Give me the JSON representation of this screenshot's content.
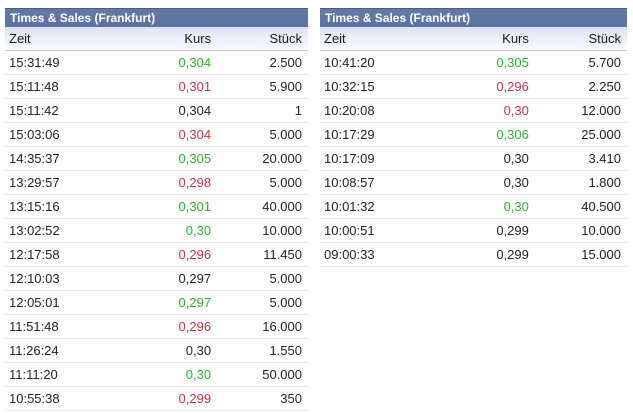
{
  "colors": {
    "title_bg": "#5b73a5",
    "title_text": "#ffffff",
    "positive": "#2fb12f",
    "negative": "#c4374b",
    "neutral": "#222222"
  },
  "tables": [
    {
      "title": "Times & Sales (Frankfurt)",
      "columns": [
        "Zeit",
        "Kurs",
        "Stück"
      ],
      "rows": [
        {
          "zeit": "15:31:49",
          "kurs": "0,304",
          "trend": "up",
          "stueck": "2.500"
        },
        {
          "zeit": "15:11:48",
          "kurs": "0,301",
          "trend": "down",
          "stueck": "5.900"
        },
        {
          "zeit": "15:11:42",
          "kurs": "0,304",
          "trend": "neutral",
          "stueck": "1"
        },
        {
          "zeit": "15:03:06",
          "kurs": "0,304",
          "trend": "down",
          "stueck": "5.000"
        },
        {
          "zeit": "14:35:37",
          "kurs": "0,305",
          "trend": "up",
          "stueck": "20.000"
        },
        {
          "zeit": "13:29:57",
          "kurs": "0,298",
          "trend": "down",
          "stueck": "5.000"
        },
        {
          "zeit": "13:15:16",
          "kurs": "0,301",
          "trend": "up",
          "stueck": "40.000"
        },
        {
          "zeit": "13:02:52",
          "kurs": "0,30",
          "trend": "up",
          "stueck": "10.000"
        },
        {
          "zeit": "12:17:58",
          "kurs": "0,296",
          "trend": "down",
          "stueck": "11.450"
        },
        {
          "zeit": "12:10:03",
          "kurs": "0,297",
          "trend": "neutral",
          "stueck": "5.000"
        },
        {
          "zeit": "12:05:01",
          "kurs": "0,297",
          "trend": "up",
          "stueck": "5.000"
        },
        {
          "zeit": "11:51:48",
          "kurs": "0,296",
          "trend": "down",
          "stueck": "16.000"
        },
        {
          "zeit": "11:26:24",
          "kurs": "0,30",
          "trend": "neutral",
          "stueck": "1.550"
        },
        {
          "zeit": "11:11:20",
          "kurs": "0,30",
          "trend": "up",
          "stueck": "50.000"
        },
        {
          "zeit": "10:55:38",
          "kurs": "0,299",
          "trend": "down",
          "stueck": "350"
        }
      ]
    },
    {
      "title": "Times & Sales (Frankfurt)",
      "columns": [
        "Zeit",
        "Kurs",
        "Stück"
      ],
      "rows": [
        {
          "zeit": "10:41:20",
          "kurs": "0,305",
          "trend": "up",
          "stueck": "5.700"
        },
        {
          "zeit": "10:32:15",
          "kurs": "0,296",
          "trend": "down",
          "stueck": "2.250"
        },
        {
          "zeit": "10:20:08",
          "kurs": "0,30",
          "trend": "down",
          "stueck": "12.000"
        },
        {
          "zeit": "10:17:29",
          "kurs": "0,306",
          "trend": "up",
          "stueck": "25.000"
        },
        {
          "zeit": "10:17:09",
          "kurs": "0,30",
          "trend": "neutral",
          "stueck": "3.410"
        },
        {
          "zeit": "10:08:57",
          "kurs": "0,30",
          "trend": "neutral",
          "stueck": "1.800"
        },
        {
          "zeit": "10:01:32",
          "kurs": "0,30",
          "trend": "up",
          "stueck": "40.500"
        },
        {
          "zeit": "10:00:51",
          "kurs": "0,299",
          "trend": "neutral",
          "stueck": "10.000"
        },
        {
          "zeit": "09:00:33",
          "kurs": "0,299",
          "trend": "neutral",
          "stueck": "15.000"
        }
      ]
    }
  ]
}
